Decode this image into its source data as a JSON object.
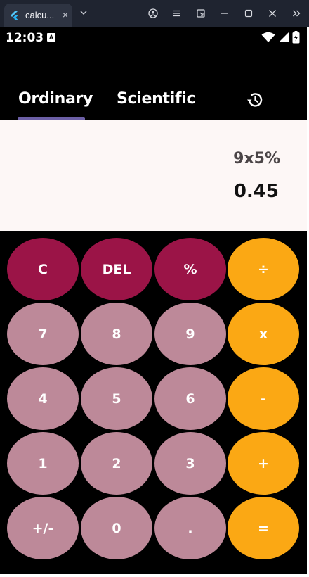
{
  "browser": {
    "tab_title": "calcu...",
    "tab_close": "×"
  },
  "status_bar": {
    "time": "12:03",
    "badge": "A"
  },
  "mode_tabs": {
    "ordinary": "Ordinary",
    "scientific": "Scientific",
    "active": "Ordinary"
  },
  "display": {
    "expression": "9x5%",
    "result": "0.45"
  },
  "keypad": {
    "rows": [
      [
        {
          "label": "C",
          "kind": "fn"
        },
        {
          "label": "DEL",
          "kind": "fn"
        },
        {
          "label": "%",
          "kind": "fn"
        },
        {
          "label": "÷",
          "kind": "op"
        }
      ],
      [
        {
          "label": "7",
          "kind": "num"
        },
        {
          "label": "8",
          "kind": "num"
        },
        {
          "label": "9",
          "kind": "num"
        },
        {
          "label": "x",
          "kind": "op"
        }
      ],
      [
        {
          "label": "4",
          "kind": "num"
        },
        {
          "label": "5",
          "kind": "num"
        },
        {
          "label": "6",
          "kind": "num"
        },
        {
          "label": "-",
          "kind": "op"
        }
      ],
      [
        {
          "label": "1",
          "kind": "num"
        },
        {
          "label": "2",
          "kind": "num"
        },
        {
          "label": "3",
          "kind": "num"
        },
        {
          "label": "+",
          "kind": "op"
        }
      ],
      [
        {
          "label": "+/-",
          "kind": "num"
        },
        {
          "label": "0",
          "kind": "num"
        },
        {
          "label": ".",
          "kind": "num"
        },
        {
          "label": "=",
          "kind": "op"
        }
      ]
    ]
  },
  "colors": {
    "function_key": "#9b1447",
    "number_key": "#bd8999",
    "operator_key": "#fba814",
    "tab_indicator": "#6c5fa6",
    "display_bg": "#fdf7f6"
  },
  "icons": {
    "tab_favicon": "flutter-icon",
    "history": "history-icon",
    "status": [
      "wifi-icon",
      "cellular-signal-icon",
      "battery-icon"
    ]
  }
}
